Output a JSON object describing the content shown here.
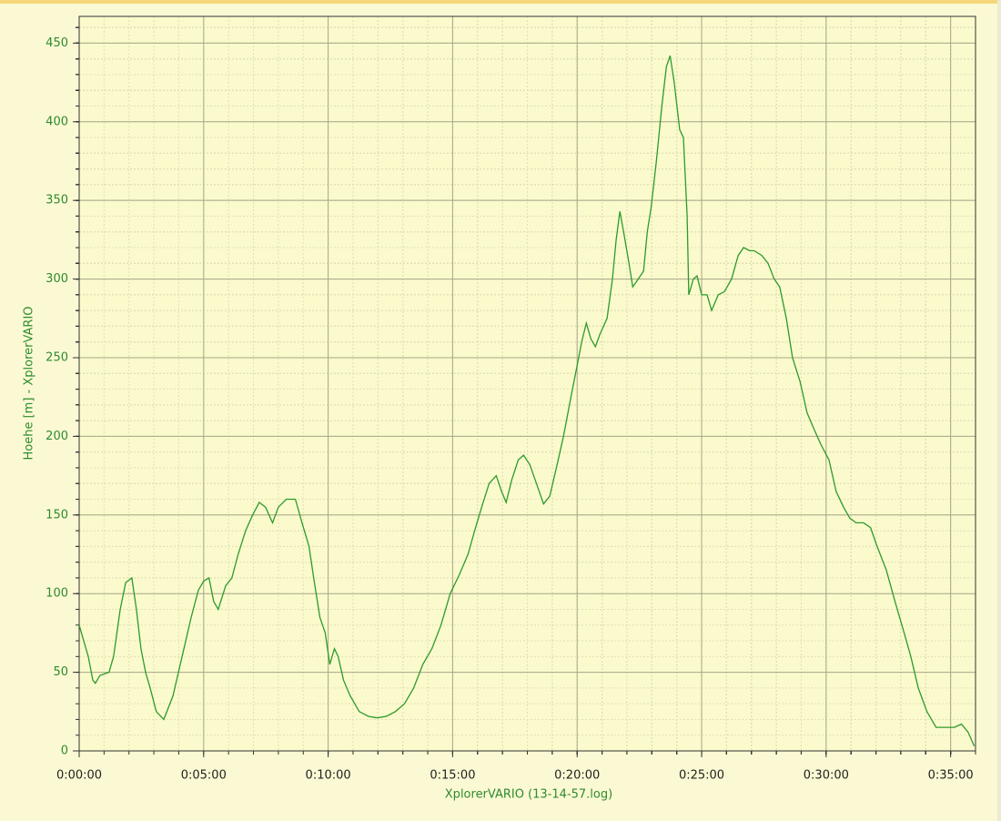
{
  "chart_data": {
    "type": "line",
    "x_label": "XplorerVARIO (13-14-57.log)",
    "y_label": "Hoehe [m]  -  XplorerVARIO",
    "color": "#2e9a2e",
    "grid": true,
    "xlim": [
      0,
      2160
    ],
    "ylim": [
      0,
      467
    ],
    "xticks": [
      {
        "value": 0,
        "label": "0:00:00"
      },
      {
        "value": 300,
        "label": "0:05:00"
      },
      {
        "value": 600,
        "label": "0:10:00"
      },
      {
        "value": 900,
        "label": "0:15:00"
      },
      {
        "value": 1200,
        "label": "0:20:00"
      },
      {
        "value": 1500,
        "label": "0:25:00"
      },
      {
        "value": 1800,
        "label": "0:30:00"
      },
      {
        "value": 2100,
        "label": "0:35:00"
      }
    ],
    "yticks": [
      0,
      50,
      100,
      150,
      200,
      250,
      300,
      350,
      400,
      450
    ],
    "x": [
      0,
      22,
      33,
      39,
      50,
      72,
      83,
      99,
      112,
      127,
      138,
      149,
      160,
      171,
      186,
      204,
      226,
      248,
      270,
      287,
      300,
      313,
      324,
      335,
      353,
      368,
      383,
      401,
      418,
      434,
      449,
      466,
      480,
      499,
      521,
      537,
      554,
      565,
      580,
      593,
      604,
      615,
      624,
      637,
      653,
      675,
      697,
      718,
      740,
      762,
      784,
      806,
      828,
      850,
      872,
      894,
      916,
      937,
      953,
      970,
      988,
      1005,
      1018,
      1029,
      1042,
      1058,
      1071,
      1086,
      1102,
      1119,
      1134,
      1150,
      1167,
      1185,
      1200,
      1211,
      1222,
      1233,
      1244,
      1255,
      1272,
      1285,
      1294,
      1303,
      1312,
      1325,
      1334,
      1347,
      1360,
      1369,
      1378,
      1391,
      1404,
      1415,
      1424,
      1434,
      1447,
      1456,
      1465,
      1469,
      1480,
      1489,
      1500,
      1513,
      1524,
      1540,
      1555,
      1572,
      1588,
      1601,
      1616,
      1627,
      1645,
      1660,
      1675,
      1688,
      1704,
      1719,
      1737,
      1754,
      1770,
      1787,
      1807,
      1824,
      1842,
      1857,
      1872,
      1890,
      1907,
      1923,
      1945,
      1966,
      1988,
      2004,
      2022,
      2043,
      2065,
      2087,
      2109,
      2126,
      2142,
      2157
    ],
    "values": [
      80,
      60,
      45,
      43,
      48,
      50,
      60,
      90,
      107,
      110,
      90,
      65,
      50,
      40,
      25,
      20,
      35,
      60,
      85,
      102,
      108,
      110,
      95,
      90,
      105,
      110,
      125,
      140,
      150,
      158,
      155,
      145,
      155,
      160,
      160,
      145,
      130,
      110,
      85,
      75,
      55,
      65,
      60,
      45,
      35,
      25,
      22,
      21,
      22,
      25,
      30,
      40,
      55,
      65,
      80,
      100,
      112,
      125,
      140,
      155,
      170,
      175,
      165,
      158,
      172,
      185,
      188,
      182,
      170,
      157,
      162,
      180,
      200,
      225,
      245,
      260,
      272,
      262,
      257,
      265,
      275,
      300,
      325,
      343,
      330,
      310,
      295,
      300,
      305,
      330,
      345,
      375,
      410,
      435,
      442,
      425,
      395,
      390,
      340,
      290,
      300,
      302,
      290,
      290,
      280,
      290,
      292,
      300,
      315,
      320,
      318,
      318,
      315,
      310,
      300,
      295,
      275,
      250,
      235,
      215,
      205,
      195,
      185,
      165,
      155,
      148,
      145,
      145,
      142,
      130,
      115,
      95,
      75,
      60,
      40,
      25,
      15,
      15,
      15,
      17,
      12,
      3
    ]
  }
}
